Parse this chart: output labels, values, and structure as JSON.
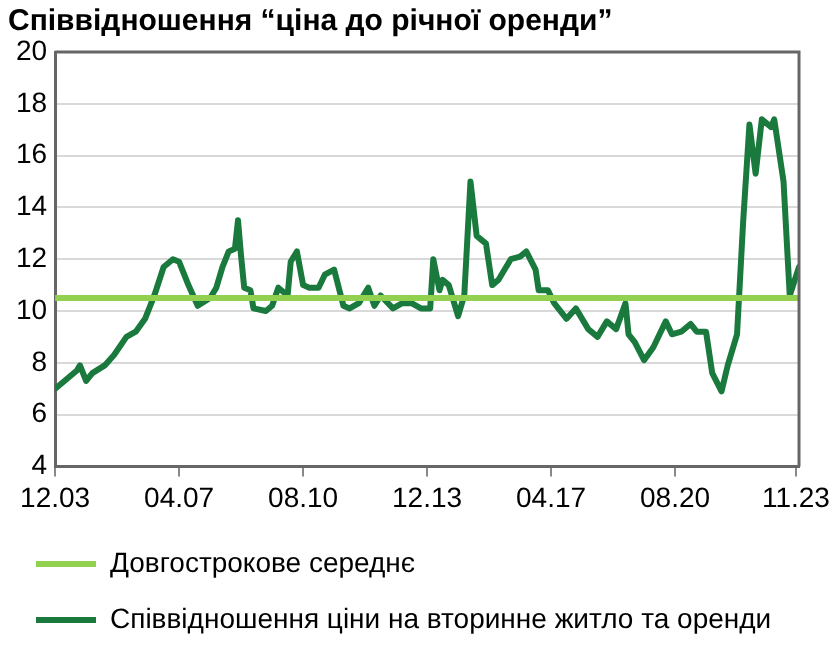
{
  "chart_data": {
    "type": "line",
    "title": "Співвідношення “ціна до річної оренди”",
    "xlim": [
      "2003-12",
      "2023-12"
    ],
    "xticks": [
      {
        "value": "2003-12",
        "label": "12.03"
      },
      {
        "value": "2007-04",
        "label": "04.07"
      },
      {
        "value": "2010-08",
        "label": "08.10"
      },
      {
        "value": "2013-12",
        "label": "12.13"
      },
      {
        "value": "2017-04",
        "label": "04.17"
      },
      {
        "value": "2020-08",
        "label": "08.20"
      },
      {
        "value": "2023-11",
        "label": "11.23"
      }
    ],
    "ylim": [
      4,
      20
    ],
    "yticks": [
      4,
      6,
      8,
      10,
      12,
      14,
      16,
      18,
      20
    ],
    "grid": "y",
    "legend": "bottom",
    "marker": "none",
    "line_style": "solid",
    "series": [
      {
        "name": "Довгострокове середнє",
        "color": "#92d050",
        "x": [
          "2003-12",
          "2023-12"
        ],
        "values": [
          10.5,
          10.5
        ]
      },
      {
        "name": "Співвідношення ціни на вторинне житло та оренди",
        "color": "#1a7a3e",
        "x": [
          "2003-12",
          "2004-03",
          "2004-07",
          "2004-08",
          "2004-10",
          "2004-12",
          "2005-04",
          "2005-07",
          "2005-11",
          "2006-02",
          "2006-05",
          "2006-08",
          "2006-11",
          "2007-02",
          "2007-04",
          "2007-07",
          "2007-10",
          "2008-02",
          "2008-04",
          "2008-06",
          "2008-08",
          "2008-10",
          "2008-11",
          "2008-12",
          "2009-01",
          "2009-03",
          "2009-04",
          "2009-08",
          "2009-10",
          "2009-12",
          "2010-03",
          "2010-04",
          "2010-06",
          "2010-08",
          "2010-10",
          "2011-01",
          "2011-03",
          "2011-06",
          "2011-09",
          "2011-11",
          "2012-02",
          "2012-05",
          "2012-07",
          "2012-09",
          "2013-01",
          "2013-04",
          "2013-07",
          "2013-10",
          "2014-01",
          "2014-02",
          "2014-04",
          "2014-05",
          "2014-07",
          "2014-10",
          "2014-12",
          "2015-02",
          "2015-04",
          "2015-07",
          "2015-09",
          "2015-11",
          "2016-03",
          "2016-06",
          "2016-08",
          "2016-11",
          "2016-12",
          "2017-03",
          "2017-05",
          "2017-09",
          "2017-12",
          "2018-04",
          "2018-07",
          "2018-10",
          "2019-01",
          "2019-04",
          "2019-05",
          "2019-07",
          "2019-10",
          "2020-01",
          "2020-05",
          "2020-07",
          "2020-10",
          "2021-01",
          "2021-03",
          "2021-06",
          "2021-08",
          "2021-11",
          "2022-01",
          "2022-04",
          "2022-06",
          "2022-08",
          "2022-10",
          "2022-12",
          "2023-03",
          "2023-04",
          "2023-07",
          "2023-09",
          "2023-12"
        ],
        "values": [
          7.0,
          7.3,
          7.7,
          7.9,
          7.3,
          7.6,
          7.9,
          8.3,
          9.0,
          9.2,
          9.7,
          10.6,
          11.7,
          12.0,
          11.9,
          11.0,
          10.2,
          10.5,
          10.9,
          11.7,
          12.3,
          12.4,
          13.5,
          12.1,
          10.9,
          10.8,
          10.1,
          10.0,
          10.2,
          10.9,
          10.6,
          11.9,
          12.3,
          11.0,
          10.9,
          10.9,
          11.4,
          11.6,
          10.2,
          10.1,
          10.3,
          10.9,
          10.2,
          10.6,
          10.1,
          10.3,
          10.3,
          10.1,
          10.1,
          12.0,
          10.8,
          11.2,
          11.0,
          9.8,
          10.6,
          15.0,
          12.9,
          12.6,
          11.0,
          11.2,
          12.0,
          12.1,
          12.3,
          11.6,
          10.8,
          10.8,
          10.3,
          9.7,
          10.1,
          9.3,
          9.0,
          9.6,
          9.3,
          10.3,
          9.1,
          8.8,
          8.1,
          8.6,
          9.6,
          9.1,
          9.2,
          9.5,
          9.2,
          9.2,
          7.6,
          6.9,
          7.9,
          9.1,
          13.5,
          17.2,
          15.3,
          17.4,
          17.1,
          17.4,
          15.0,
          10.6,
          11.7
        ]
      }
    ]
  }
}
